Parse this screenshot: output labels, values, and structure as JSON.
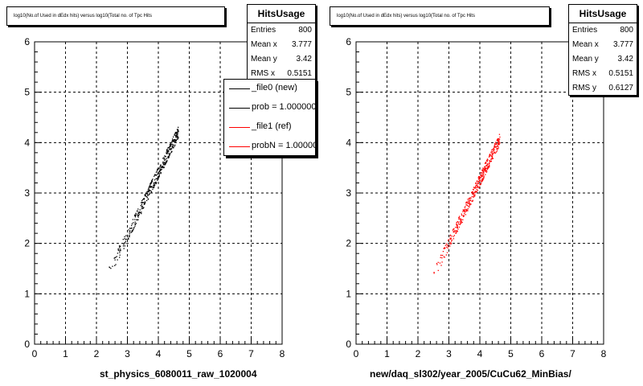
{
  "chart_data": [
    {
      "type": "scatter",
      "title": "log10(No.of Used in dEdx hits) versus log10(Total no. of Tpc Hits",
      "xlabel": "st_physics_6080011_raw_1020004",
      "xlim": [
        0,
        8
      ],
      "ylim": [
        0,
        6
      ],
      "xticks": [
        "0",
        "1",
        "2",
        "3",
        "4",
        "5",
        "6",
        "7",
        "8"
      ],
      "yticks": [
        "0",
        "1",
        "2",
        "3",
        "4",
        "5",
        "6"
      ],
      "grid": true,
      "stats": {
        "title": "HitsUsage",
        "rows": [
          {
            "label": "Entries",
            "value": "800"
          },
          {
            "label": "Mean x",
            "value": "3.777"
          },
          {
            "label": "Mean y",
            "value": "3.42"
          },
          {
            "label": "RMS x",
            "value": "0.5151"
          }
        ]
      },
      "legend": {
        "placement": "top-right",
        "entries": [
          {
            "label": "_file0 (new)",
            "color": "#000000"
          },
          {
            "label": "prob = 1.000000",
            "color": "#000000"
          },
          {
            "label": "_file1 (ref)",
            "color": "#ff0000"
          },
          {
            "label": "probN = 1.000000",
            "color": "#ff0000"
          }
        ]
      },
      "series": [
        {
          "color": "#000000",
          "band": {
            "x_start": 2.35,
            "x_end": 4.65,
            "y_at_start": 1.35,
            "slope": 1.24,
            "spread": 0.12
          },
          "n_points": 420
        }
      ]
    },
    {
      "type": "scatter",
      "title": "log10(No.of Used in dEdx hits) versus log10(Total no. of Tpc Hits",
      "xlabel": "new/daq_sl302/year_2005/CuCu62_MinBias/",
      "xlim": [
        0,
        8
      ],
      "ylim": [
        0,
        6
      ],
      "xticks": [
        "0",
        "1",
        "2",
        "3",
        "4",
        "5",
        "6",
        "7",
        "8"
      ],
      "yticks": [
        "0",
        "1",
        "2",
        "3",
        "4",
        "5",
        "6"
      ],
      "grid": true,
      "stats": {
        "title": "HitsUsage",
        "rows": [
          {
            "label": "Entries",
            "value": "800"
          },
          {
            "label": "Mean x",
            "value": "3.777"
          },
          {
            "label": "Mean y",
            "value": "3.42"
          },
          {
            "label": "RMS x",
            "value": "0.5151"
          },
          {
            "label": "RMS y",
            "value": "0.6127"
          }
        ]
      },
      "series": [
        {
          "color": "#ff0000",
          "band": {
            "x_start": 2.45,
            "x_end": 4.65,
            "y_at_start": 1.3,
            "slope": 1.26,
            "spread": 0.12
          },
          "n_points": 420
        }
      ]
    }
  ]
}
